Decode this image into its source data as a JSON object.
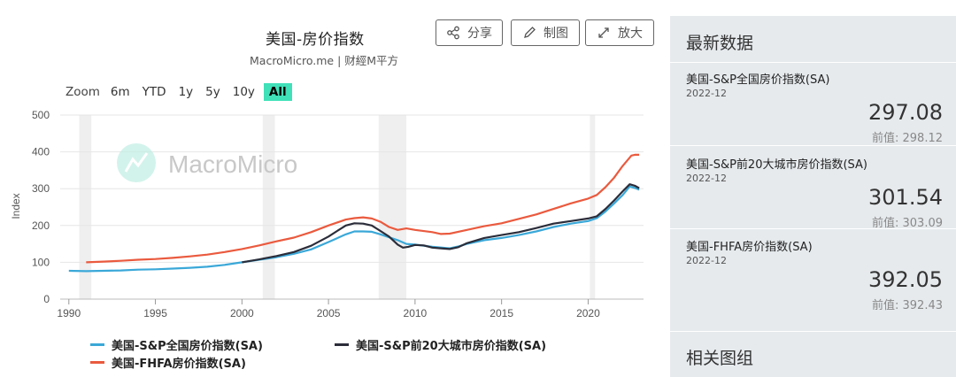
{
  "header": {
    "title": "美国-房价指数",
    "subtitle": "MacroMicro.me | 财經M平方"
  },
  "toolbar": {
    "share_label": "分享",
    "draw_label": "制图",
    "enlarge_label": "放大"
  },
  "zoom": {
    "label": "Zoom",
    "options": [
      "6m",
      "YTD",
      "1y",
      "5y",
      "10y",
      "All"
    ],
    "active": "All"
  },
  "watermark": "MacroMicro",
  "chart_data": {
    "type": "line",
    "ylabel": "Index",
    "xlim": [
      1989.5,
      2023.2
    ],
    "ylim": [
      0,
      500
    ],
    "x_ticks": [
      1990,
      1995,
      2000,
      2005,
      2010,
      2015,
      2020
    ],
    "y_ticks": [
      0,
      100,
      200,
      300,
      400,
      500
    ],
    "recession_shading": [
      [
        1990.6,
        1991.3
      ],
      [
        2001.2,
        2001.9
      ],
      [
        2007.9,
        2009.5
      ],
      [
        2020.1,
        2020.4
      ]
    ],
    "grid": "horizontal",
    "legend_position": "bottom",
    "series": [
      {
        "name": "美国-S&P全国房价指数(SA)",
        "color": "#3aa8d8",
        "points": [
          [
            1990,
            77
          ],
          [
            1991,
            76
          ],
          [
            1992,
            77
          ],
          [
            1993,
            78
          ],
          [
            1994,
            80
          ],
          [
            1995,
            81
          ],
          [
            1996,
            83
          ],
          [
            1997,
            85
          ],
          [
            1998,
            88
          ],
          [
            1999,
            93
          ],
          [
            2000,
            100
          ],
          [
            2001,
            107
          ],
          [
            2002,
            114
          ],
          [
            2003,
            123
          ],
          [
            2004,
            135
          ],
          [
            2005,
            155
          ],
          [
            2006,
            176
          ],
          [
            2006.5,
            184
          ],
          [
            2007,
            184
          ],
          [
            2007.5,
            183
          ],
          [
            2008,
            176
          ],
          [
            2009,
            160
          ],
          [
            2009.5,
            150
          ],
          [
            2010,
            148
          ],
          [
            2011,
            142
          ],
          [
            2012,
            138
          ],
          [
            2012.5,
            143
          ],
          [
            2013,
            150
          ],
          [
            2014,
            160
          ],
          [
            2015,
            166
          ],
          [
            2016,
            174
          ],
          [
            2017,
            184
          ],
          [
            2018,
            196
          ],
          [
            2019,
            205
          ],
          [
            2020,
            212
          ],
          [
            2020.5,
            220
          ],
          [
            2021,
            238
          ],
          [
            2021.5,
            260
          ],
          [
            2022,
            283
          ],
          [
            2022.4,
            306
          ],
          [
            2022.7,
            302
          ],
          [
            2022.95,
            297.08
          ]
        ]
      },
      {
        "name": "美国-S&P前20大城市房价指数(SA)",
        "color": "#2b2d3a",
        "points": [
          [
            2000,
            100
          ],
          [
            2001,
            108
          ],
          [
            2002,
            117
          ],
          [
            2003,
            128
          ],
          [
            2004,
            145
          ],
          [
            2005,
            170
          ],
          [
            2005.5,
            185
          ],
          [
            2006,
            200
          ],
          [
            2006.5,
            206
          ],
          [
            2007,
            205
          ],
          [
            2007.5,
            200
          ],
          [
            2008,
            185
          ],
          [
            2008.5,
            170
          ],
          [
            2009,
            148
          ],
          [
            2009.3,
            140
          ],
          [
            2009.6,
            142
          ],
          [
            2010,
            147
          ],
          [
            2010.5,
            146
          ],
          [
            2011,
            140
          ],
          [
            2011.5,
            138
          ],
          [
            2012,
            136
          ],
          [
            2012.5,
            141
          ],
          [
            2013,
            152
          ],
          [
            2014,
            166
          ],
          [
            2015,
            174
          ],
          [
            2016,
            182
          ],
          [
            2017,
            193
          ],
          [
            2018,
            205
          ],
          [
            2019,
            212
          ],
          [
            2020,
            219
          ],
          [
            2020.5,
            225
          ],
          [
            2021,
            245
          ],
          [
            2021.5,
            268
          ],
          [
            2022,
            293
          ],
          [
            2022.4,
            312
          ],
          [
            2022.7,
            308
          ],
          [
            2022.95,
            301.54
          ]
        ]
      },
      {
        "name": "美国-FHFA房价指数(SA)",
        "color": "#ea5a3e",
        "points": [
          [
            1991,
            100
          ],
          [
            1992,
            102
          ],
          [
            1993,
            104
          ],
          [
            1994,
            107
          ],
          [
            1995,
            109
          ],
          [
            1996,
            112
          ],
          [
            1997,
            116
          ],
          [
            1998,
            121
          ],
          [
            1999,
            128
          ],
          [
            2000,
            136
          ],
          [
            2001,
            146
          ],
          [
            2002,
            157
          ],
          [
            2003,
            167
          ],
          [
            2004,
            182
          ],
          [
            2005,
            200
          ],
          [
            2006,
            216
          ],
          [
            2006.5,
            220
          ],
          [
            2007,
            222
          ],
          [
            2007.5,
            219
          ],
          [
            2008,
            210
          ],
          [
            2008.5,
            196
          ],
          [
            2009,
            188
          ],
          [
            2009.5,
            192
          ],
          [
            2010,
            188
          ],
          [
            2011,
            182
          ],
          [
            2011.5,
            177
          ],
          [
            2012,
            178
          ],
          [
            2013,
            188
          ],
          [
            2014,
            198
          ],
          [
            2015,
            206
          ],
          [
            2016,
            218
          ],
          [
            2017,
            230
          ],
          [
            2018,
            245
          ],
          [
            2019,
            260
          ],
          [
            2020,
            273
          ],
          [
            2020.5,
            283
          ],
          [
            2021,
            304
          ],
          [
            2021.5,
            330
          ],
          [
            2022,
            362
          ],
          [
            2022.5,
            390
          ],
          [
            2022.7,
            392
          ],
          [
            2022.95,
            392.05
          ]
        ]
      }
    ]
  },
  "sidebar": {
    "heading": "最新数据",
    "stats": [
      {
        "name": "美国-S&P全国房价指数(SA)",
        "date": "2022-12",
        "value": "297.08",
        "prev": "前值: 298.12"
      },
      {
        "name": "美国-S&P前20大城市房价指数(SA)",
        "date": "2022-12",
        "value": "301.54",
        "prev": "前值: 303.09"
      },
      {
        "name": "美国-FHFA房价指数(SA)",
        "date": "2022-12",
        "value": "392.05",
        "prev": "前值: 392.43"
      }
    ],
    "footer": "相关图组"
  }
}
